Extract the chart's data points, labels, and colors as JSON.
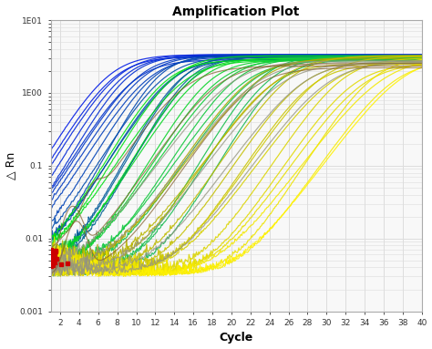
{
  "title": "Amplification Plot",
  "xlabel": "Cycle",
  "ylabel": "△ Rn",
  "xlim": [
    1,
    40
  ],
  "ylim_log": [
    0.001,
    10
  ],
  "xticks": [
    2,
    4,
    6,
    8,
    10,
    12,
    14,
    16,
    18,
    20,
    22,
    24,
    26,
    28,
    30,
    32,
    34,
    36,
    38,
    40
  ],
  "yticks": [
    0.001,
    0.01,
    0.1,
    1.0,
    10.0
  ],
  "ytick_labels": [
    "0.001",
    "0.01",
    "0.1",
    "1E00",
    "1E01"
  ],
  "background_color": "#ffffff",
  "plot_bg_color": "#f8f8f8",
  "grid_color": "#dddddd",
  "num_blue_curves": 18,
  "num_green_curves": 14,
  "num_yellow_curves": 16,
  "num_gray_curves": 5,
  "num_olive_curves": 3,
  "baseline": 0.003,
  "plateau": 3.2,
  "red_marker_color": "#cc0000",
  "line_width": 0.85,
  "threshold": 0.0055
}
